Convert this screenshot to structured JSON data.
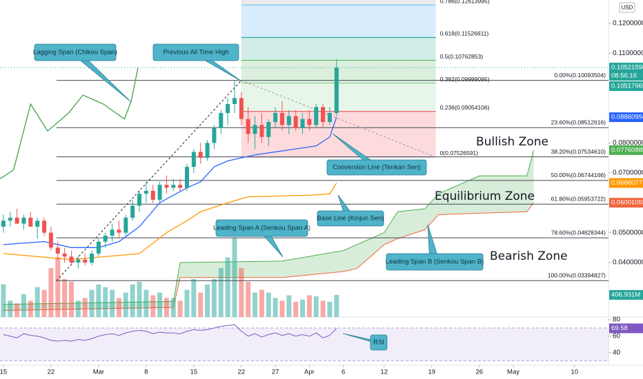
{
  "chart_data": {
    "type": "candlestick",
    "currency": "USD",
    "x": [
      0,
      1,
      2,
      3,
      4,
      5,
      6,
      7,
      8,
      9,
      10,
      11,
      12,
      13,
      14,
      15,
      16,
      17,
      18,
      19,
      20,
      21,
      22,
      23,
      24,
      25,
      26,
      27,
      28,
      29,
      30,
      31,
      32,
      33,
      34,
      35,
      36,
      37,
      38,
      39,
      40,
      41,
      42,
      43,
      44,
      45,
      46,
      47,
      48,
      49
    ],
    "open": [
      0.052,
      0.054,
      0.055,
      0.053,
      0.055,
      0.052,
      0.054,
      0.05,
      0.045,
      0.043,
      0.042,
      0.04,
      0.041,
      0.04,
      0.043,
      0.047,
      0.049,
      0.051,
      0.05,
      0.055,
      0.059,
      0.063,
      0.064,
      0.061,
      0.066,
      0.065,
      0.066,
      0.065,
      0.072,
      0.077,
      0.075,
      0.08,
      0.085,
      0.09,
      0.093,
      0.095,
      0.088,
      0.083,
      0.086,
      0.082,
      0.087,
      0.09,
      0.086,
      0.089,
      0.085,
      0.088,
      0.086,
      0.092,
      0.087,
      0.09
    ],
    "high": [
      0.056,
      0.057,
      0.058,
      0.056,
      0.057,
      0.055,
      0.055,
      0.052,
      0.047,
      0.045,
      0.044,
      0.042,
      0.043,
      0.044,
      0.048,
      0.05,
      0.053,
      0.054,
      0.056,
      0.061,
      0.064,
      0.067,
      0.066,
      0.067,
      0.069,
      0.068,
      0.068,
      0.073,
      0.078,
      0.08,
      0.081,
      0.086,
      0.091,
      0.095,
      0.1009,
      0.097,
      0.092,
      0.089,
      0.09,
      0.088,
      0.092,
      0.094,
      0.091,
      0.091,
      0.09,
      0.091,
      0.093,
      0.093,
      0.092,
      0.108
    ],
    "low": [
      0.05,
      0.052,
      0.053,
      0.051,
      0.052,
      0.048,
      0.049,
      0.044,
      0.041,
      0.04,
      0.039,
      0.038,
      0.039,
      0.039,
      0.042,
      0.045,
      0.047,
      0.048,
      0.049,
      0.054,
      0.057,
      0.06,
      0.06,
      0.06,
      0.063,
      0.064,
      0.064,
      0.064,
      0.07,
      0.073,
      0.074,
      0.078,
      0.083,
      0.086,
      0.09,
      0.086,
      0.08,
      0.078,
      0.08,
      0.079,
      0.085,
      0.084,
      0.083,
      0.084,
      0.083,
      0.084,
      0.085,
      0.085,
      0.086,
      0.089
    ],
    "close": [
      0.054,
      0.055,
      0.053,
      0.055,
      0.052,
      0.054,
      0.05,
      0.045,
      0.043,
      0.042,
      0.04,
      0.041,
      0.04,
      0.043,
      0.047,
      0.049,
      0.051,
      0.05,
      0.055,
      0.059,
      0.063,
      0.064,
      0.061,
      0.066,
      0.065,
      0.066,
      0.065,
      0.072,
      0.077,
      0.075,
      0.08,
      0.085,
      0.09,
      0.093,
      0.095,
      0.088,
      0.083,
      0.086,
      0.082,
      0.087,
      0.09,
      0.086,
      0.089,
      0.085,
      0.088,
      0.086,
      0.092,
      0.087,
      0.09,
      0.1052
    ],
    "volume": [
      600,
      300,
      250,
      420,
      300,
      550,
      500,
      900,
      1100,
      700,
      650,
      300,
      350,
      500,
      600,
      550,
      500,
      350,
      450,
      600,
      650,
      500,
      400,
      450,
      350,
      350,
      300,
      500,
      700,
      450,
      600,
      700,
      900,
      1100,
      1460,
      900,
      650,
      450,
      500,
      450,
      350,
      300,
      400,
      280,
      320,
      400,
      380,
      300,
      280,
      406.931
    ],
    "volume_label": "406.931M",
    "up_color": "#26a69a",
    "down_color": "#ef5350",
    "xlim": [
      -0.5,
      89
    ],
    "xticks": [
      {
        "value": 0,
        "label": "15"
      },
      {
        "value": 7,
        "label": "22"
      },
      {
        "value": 14,
        "label": "Mar"
      },
      {
        "value": 21,
        "label": "8"
      },
      {
        "value": 28,
        "label": "15"
      },
      {
        "value": 35,
        "label": "22"
      },
      {
        "value": 40,
        "label": "27"
      },
      {
        "value": 45,
        "label": "Apr"
      },
      {
        "value": 50,
        "label": "6"
      },
      {
        "value": 56,
        "label": "12"
      },
      {
        "value": 63,
        "label": "19"
      },
      {
        "value": 70,
        "label": "26"
      },
      {
        "value": 75,
        "label": "May"
      },
      {
        "value": 84,
        "label": "10"
      }
    ],
    "ylim": [
      0.0218,
      0.1278
    ],
    "yticks": [
      {
        "value": 0.12,
        "label": "0.12000000"
      },
      {
        "value": 0.11,
        "label": "0.11000000"
      },
      {
        "value": 0.08,
        "label": "0.08000000"
      },
      {
        "value": 0.07,
        "label": "0.07000000"
      },
      {
        "value": 0.05,
        "label": "0.05000000"
      },
      {
        "value": 0.04,
        "label": "0.04000000"
      }
    ],
    "lines": [
      {
        "color": "#2962ff",
        "x": [
          0,
          6,
          10,
          14,
          17,
          20,
          23,
          27,
          29,
          31,
          33,
          35,
          37,
          40,
          43,
          46,
          48,
          49
        ],
        "values": [
          0.046,
          0.047,
          0.045,
          0.045,
          0.047,
          0.052,
          0.06,
          0.065,
          0.067,
          0.072,
          0.074,
          0.075,
          0.076,
          0.077,
          0.078,
          0.079,
          0.082,
          0.08860994
        ]
      },
      {
        "color": "#ff9800",
        "x": [
          0,
          10,
          20,
          24,
          27,
          29,
          33,
          36,
          45,
          48,
          49
        ],
        "values": [
          0.043,
          0.041,
          0.043,
          0.05,
          0.054,
          0.057,
          0.06,
          0.062,
          0.0625,
          0.063,
          0.06660777
        ]
      },
      {
        "color": "#43a047",
        "x": [
          -0.5,
          1.5,
          4,
          6.5,
          9.6,
          11.7,
          14.7,
          17.8,
          18.8,
          19.8
        ],
        "values": [
          0.068,
          0.071,
          0.093,
          0.084,
          0.09,
          0.096,
          0.093,
          0.088,
          0.094,
          0.1052
        ]
      }
    ],
    "cloud": {
      "x": [
        0,
        25,
        26,
        41,
        50,
        52,
        56,
        58,
        62,
        64,
        70,
        77,
        78
      ],
      "span_a": [
        0.026,
        0.027,
        0.04,
        0.0405,
        0.044,
        0.046,
        0.05,
        0.057,
        0.058,
        0.063,
        0.069,
        0.069,
        0.07760885
      ],
      "span_b": [
        0.024,
        0.025,
        0.035,
        0.035,
        0.037,
        0.038,
        0.046,
        0.048,
        0.051,
        0.056,
        0.0565,
        0.057,
        0.06001055
      ],
      "color_a": "#4caf50",
      "color_b": "#f0643c",
      "fill": "rgba(76,175,80,0.22)"
    },
    "fib_retracement": {
      "x": [
        35,
        63.6
      ],
      "levels": [
        {
          "value": 0.07526591,
          "label": "0(0.07526591)",
          "color": "#9598a1",
          "fill": "rgba(242,54,69,0.18)"
        },
        {
          "value": 0.09054106,
          "label": "0.236(0.09054106)",
          "color": "#f23645",
          "fill": "rgba(129,199,132,0.18)"
        },
        {
          "value": 0.09999095,
          "label": "0.382(0.09999095)",
          "color": "#81c784",
          "fill": "rgba(76,175,80,0.2)"
        },
        {
          "value": 0.10762853,
          "label": "0.5(0.10762853)",
          "color": "#4caf50",
          "fill": "rgba(8,153,129,0.18)"
        },
        {
          "value": 0.11526611,
          "label": "0.618(0.11526611)",
          "color": "#089981",
          "fill": "rgba(100,181,246,0.25)"
        },
        {
          "value": 0.12613995,
          "label": "0.786(0.12613995)",
          "color": "#64b5f6",
          "fill": "rgba(149,152,161,0.2)"
        }
      ]
    },
    "fib_levels": {
      "x_start": 7.8,
      "levels": [
        {
          "value": 0.10093504,
          "label": "0.00%(0.10093504)"
        },
        {
          "value": 0.08512616,
          "label": "23.60%(0.08512616)"
        },
        {
          "value": 0.0753461,
          "label": "38.20%(0.07534610)"
        },
        {
          "value": 0.06744166,
          "label": "50.00%(0.06744166)"
        },
        {
          "value": 0.05953722,
          "label": "61.80%(0.05953722)"
        },
        {
          "value": 0.04828344,
          "label": "78.60%(0.04828344)"
        },
        {
          "value": 0.03394827,
          "label": "100.00%(0.03394827)"
        }
      ]
    },
    "price_tags": [
      {
        "value": 0.10521598,
        "color": "#26a69a"
      },
      {
        "value": 0.10517965,
        "color": "#26a69a"
      },
      {
        "value": 0.08860994,
        "color": "#2962ff"
      },
      {
        "value": 0.07760885,
        "color": "#4caf50"
      },
      {
        "value": 0.06660777,
        "color": "#ff9800"
      },
      {
        "value": 0.06001055,
        "color": "#f0643c"
      }
    ],
    "countdown": "08:56:16",
    "rsi": {
      "color": "#7e57c2",
      "x": [
        0,
        1,
        2,
        3,
        4,
        5,
        6,
        7,
        8,
        9,
        10,
        11,
        12,
        13,
        14,
        15,
        16,
        17,
        18,
        19,
        20,
        21,
        22,
        23,
        24,
        25,
        26,
        27,
        28,
        29,
        30,
        31,
        32,
        33,
        34,
        35,
        36,
        37,
        38,
        39,
        40,
        41,
        42,
        43,
        44,
        45,
        46,
        47,
        48,
        49
      ],
      "values": [
        62,
        60,
        58,
        63,
        61,
        60,
        58,
        55,
        54,
        55,
        54,
        56,
        55,
        57,
        60,
        62,
        63,
        61,
        64,
        66,
        67,
        66,
        63,
        65,
        64,
        64,
        63,
        66,
        68,
        67,
        68,
        70,
        72,
        73,
        74,
        66,
        60,
        63,
        59,
        62,
        64,
        61,
        63,
        60,
        62,
        60,
        64,
        58,
        61,
        69.58
      ],
      "ylim": [
        24.7,
        83.4
      ],
      "yticks": [
        80,
        60,
        40
      ],
      "band": [
        30,
        70
      ]
    },
    "annotations": [
      "Lagging Span (Chikou Span)",
      "Previous All Time High",
      "Conversion Line (Tenkan Sen)",
      "Base Line (Kinjun Sen)",
      "Leading Span A (Senkou Span A)",
      "Leading Span B (Senkou Span B)",
      "RSI"
    ],
    "zones": [
      "Bullish Zone",
      "Equilibrium Zone",
      "Bearish Zone"
    ]
  }
}
